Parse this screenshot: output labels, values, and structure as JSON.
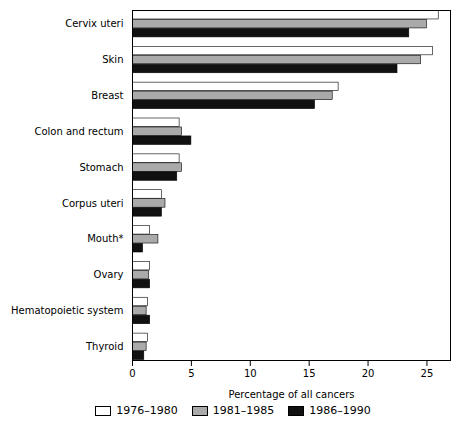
{
  "chart_data": {
    "type": "bar",
    "orientation": "horizontal",
    "categories": [
      "Cervix uteri",
      "Skin",
      "Breast",
      "Colon and rectum",
      "Stomach",
      "Corpus uteri",
      "Mouth*",
      "Ovary",
      "Hematopoietic system",
      "Thyroid"
    ],
    "series": [
      {
        "name": "1976–1980",
        "color": "#ffffff",
        "values": [
          26.0,
          25.5,
          17.5,
          4.0,
          4.0,
          2.5,
          1.5,
          1.5,
          1.3,
          1.3
        ]
      },
      {
        "name": "1981–1985",
        "color": "#aaaaaa",
        "values": [
          25.0,
          24.5,
          17.0,
          4.2,
          4.2,
          2.8,
          2.2,
          1.4,
          1.2,
          1.2
        ]
      },
      {
        "name": "1986–1990",
        "color": "#111111",
        "values": [
          23.5,
          22.5,
          15.5,
          5.0,
          3.8,
          2.5,
          0.9,
          1.5,
          1.5,
          1.0
        ]
      }
    ],
    "xlabel": "Percentage of all cancers",
    "xlim": [
      0,
      27
    ],
    "xticks": [
      0,
      5,
      10,
      15,
      20,
      25
    ],
    "legend": "bottom"
  }
}
